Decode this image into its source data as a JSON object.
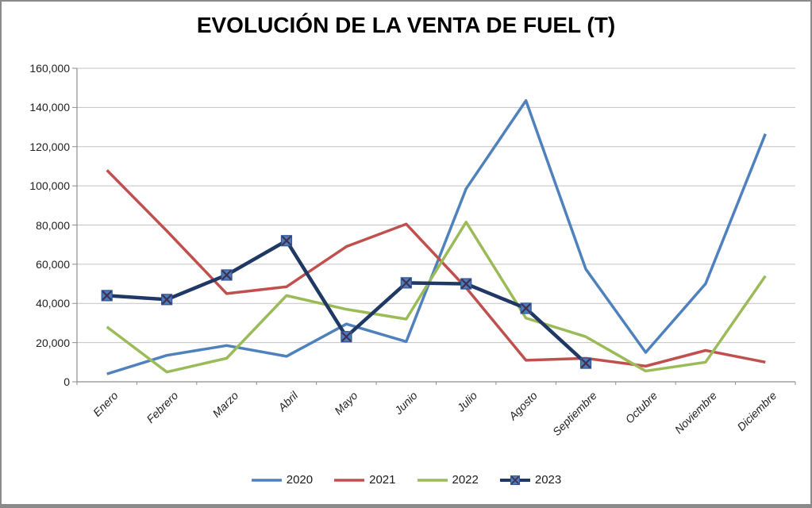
{
  "window": {
    "background": "#FFFFFF",
    "border_color": "#8A8A8A"
  },
  "chart_data": {
    "type": "line",
    "title": "EVOLUCIÓN DE LA VENTA DE FUEL (T)",
    "categories": [
      "Enero",
      "Febrero",
      "Marzo",
      "Abril",
      "Mayo",
      "Junio",
      "Julio",
      "Agosto",
      "Septiembre",
      "Octubre",
      "Noviembre",
      "Diciembre"
    ],
    "y_axis": {
      "min": 0,
      "max": 160000,
      "step": 20000,
      "tick_labels": [
        "0",
        "20,000",
        "40,000",
        "60,000",
        "80,000",
        "100,000",
        "120,000",
        "140,000",
        "160,000"
      ]
    },
    "grid": "horizontal",
    "legend_position": "bottom",
    "colors": {
      "gridline": "#C3C3C3",
      "axis": "#8E8E8E",
      "tick_text": "#1F1F1F"
    },
    "series": [
      {
        "name": "2020",
        "color": "#4F81BD",
        "marker": "none",
        "values": [
          4000,
          13500,
          18500,
          13000,
          29500,
          20500,
          98500,
          143500,
          57500,
          15000,
          50000,
          126500
        ]
      },
      {
        "name": "2021",
        "color": "#C0504D",
        "marker": "none",
        "values": [
          108000,
          77000,
          45000,
          48500,
          69000,
          80500,
          48000,
          11000,
          12000,
          8000,
          16000,
          10000
        ]
      },
      {
        "name": "2022",
        "color": "#9BBB59",
        "marker": "none",
        "values": [
          28000,
          5000,
          12000,
          44000,
          37000,
          32000,
          81500,
          32500,
          23000,
          5500,
          10000,
          54000
        ]
      },
      {
        "name": "2023",
        "color": "#1F3864",
        "marker": "square-x",
        "marker_fill": "#4E7CBB",
        "marker_stroke": "#2F5597",
        "marker_x_color": "#403152",
        "values": [
          44000,
          42000,
          54500,
          72000,
          23000,
          50500,
          50000,
          37500,
          9500,
          null,
          null,
          null
        ]
      }
    ]
  }
}
